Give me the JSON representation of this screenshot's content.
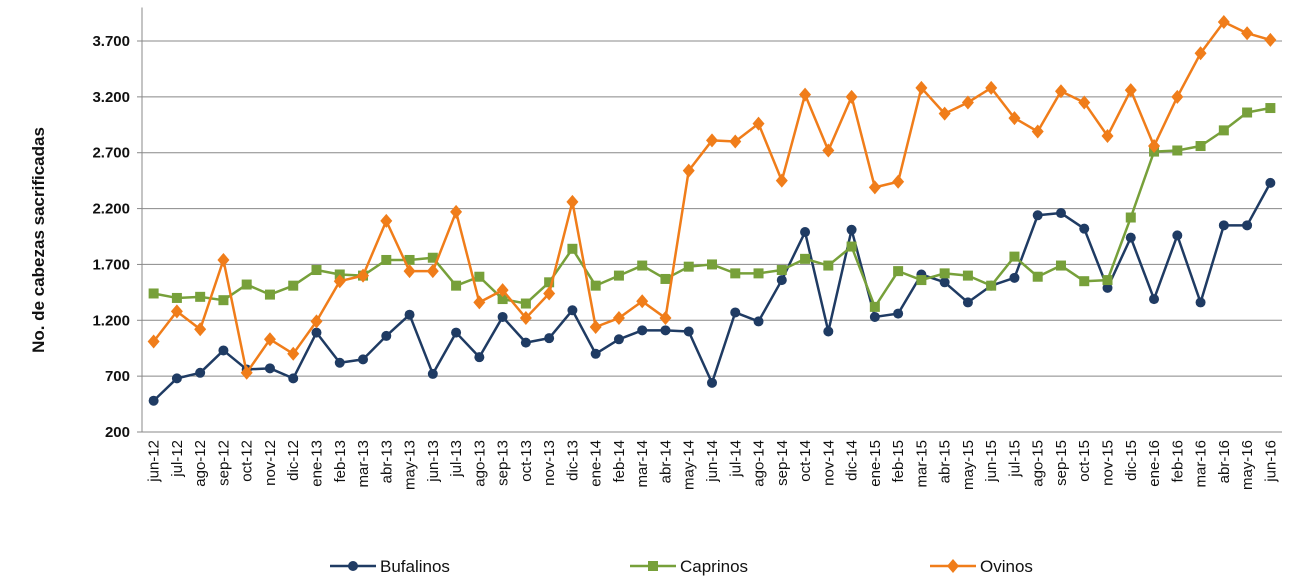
{
  "chart_data": {
    "type": "line",
    "y_label": "No. de cabezas sacrificadas",
    "categories": [
      "jun-12",
      "jul-12",
      "ago-12",
      "sep-12",
      "oct-12",
      "nov-12",
      "dic-12",
      "ene-13",
      "feb-13",
      "mar-13",
      "abr-13",
      "may-13",
      "jun-13",
      "jul-13",
      "ago-13",
      "sep-13",
      "oct-13",
      "nov-13",
      "dic-13",
      "ene-14",
      "feb-14",
      "mar-14",
      "abr-14",
      "may-14",
      "jun-14",
      "jul-14",
      "ago-14",
      "sep-14",
      "oct-14",
      "nov-14",
      "dic-14",
      "ene-15",
      "feb-15",
      "mar-15",
      "abr-15",
      "may-15",
      "jun-15",
      "jul-15",
      "ago-15",
      "sep-15",
      "oct-15",
      "nov-15",
      "dic-15",
      "ene-16",
      "feb-16",
      "mar-16",
      "abr-16",
      "may-16",
      "jun-16"
    ],
    "series": [
      {
        "name": "Bufalinos",
        "color": "#1f3b63",
        "marker": "circle",
        "values": [
          480,
          680,
          730,
          930,
          760,
          770,
          680,
          1090,
          820,
          850,
          1060,
          1250,
          720,
          1090,
          870,
          1230,
          1000,
          1040,
          1290,
          900,
          1030,
          1110,
          1110,
          1100,
          640,
          1270,
          1190,
          1560,
          1990,
          1100,
          2010,
          1230,
          1260,
          1610,
          1540,
          1360,
          1510,
          1580,
          2140,
          2160,
          2020,
          1490,
          1940,
          1390,
          1960,
          1360,
          2050,
          2050,
          2430
        ]
      },
      {
        "name": "Caprinos",
        "color": "#77a03a",
        "marker": "square",
        "values": [
          1440,
          1400,
          1410,
          1380,
          1520,
          1430,
          1510,
          1650,
          1610,
          1600,
          1740,
          1740,
          1760,
          1510,
          1590,
          1390,
          1350,
          1540,
          1840,
          1510,
          1600,
          1690,
          1570,
          1680,
          1700,
          1620,
          1620,
          1650,
          1750,
          1690,
          1860,
          1320,
          1640,
          1560,
          1620,
          1600,
          1510,
          1770,
          1590,
          1690,
          1550,
          1560,
          2120,
          2710,
          2720,
          2760,
          2900,
          3060,
          3100
        ]
      },
      {
        "name": "Ovinos",
        "color": "#f07d1a",
        "marker": "diamond",
        "values": [
          1010,
          1280,
          1120,
          1740,
          730,
          1030,
          900,
          1190,
          1550,
          1600,
          2090,
          1640,
          1640,
          2170,
          1360,
          1470,
          1220,
          1440,
          2260,
          1140,
          1220,
          1370,
          1220,
          2540,
          2810,
          2800,
          2960,
          2450,
          3220,
          2720,
          3200,
          2390,
          2440,
          3280,
          3050,
          3150,
          3280,
          3010,
          2890,
          3250,
          3150,
          2850,
          3260,
          2760,
          3200,
          3590,
          3870,
          3770,
          3710
        ]
      }
    ],
    "ylim": [
      200,
      4000
    ],
    "yticks": [
      200,
      700,
      {
        "value": 1200,
        "label": "1.200"
      },
      {
        "value": 1700,
        "label": "1.700"
      },
      {
        "value": 2200,
        "label": "2.200"
      },
      {
        "value": 2700,
        "label": "2.700"
      },
      {
        "value": 3200,
        "label": "3.200"
      },
      {
        "value": 3700,
        "label": "3.700"
      }
    ],
    "grid": true
  }
}
